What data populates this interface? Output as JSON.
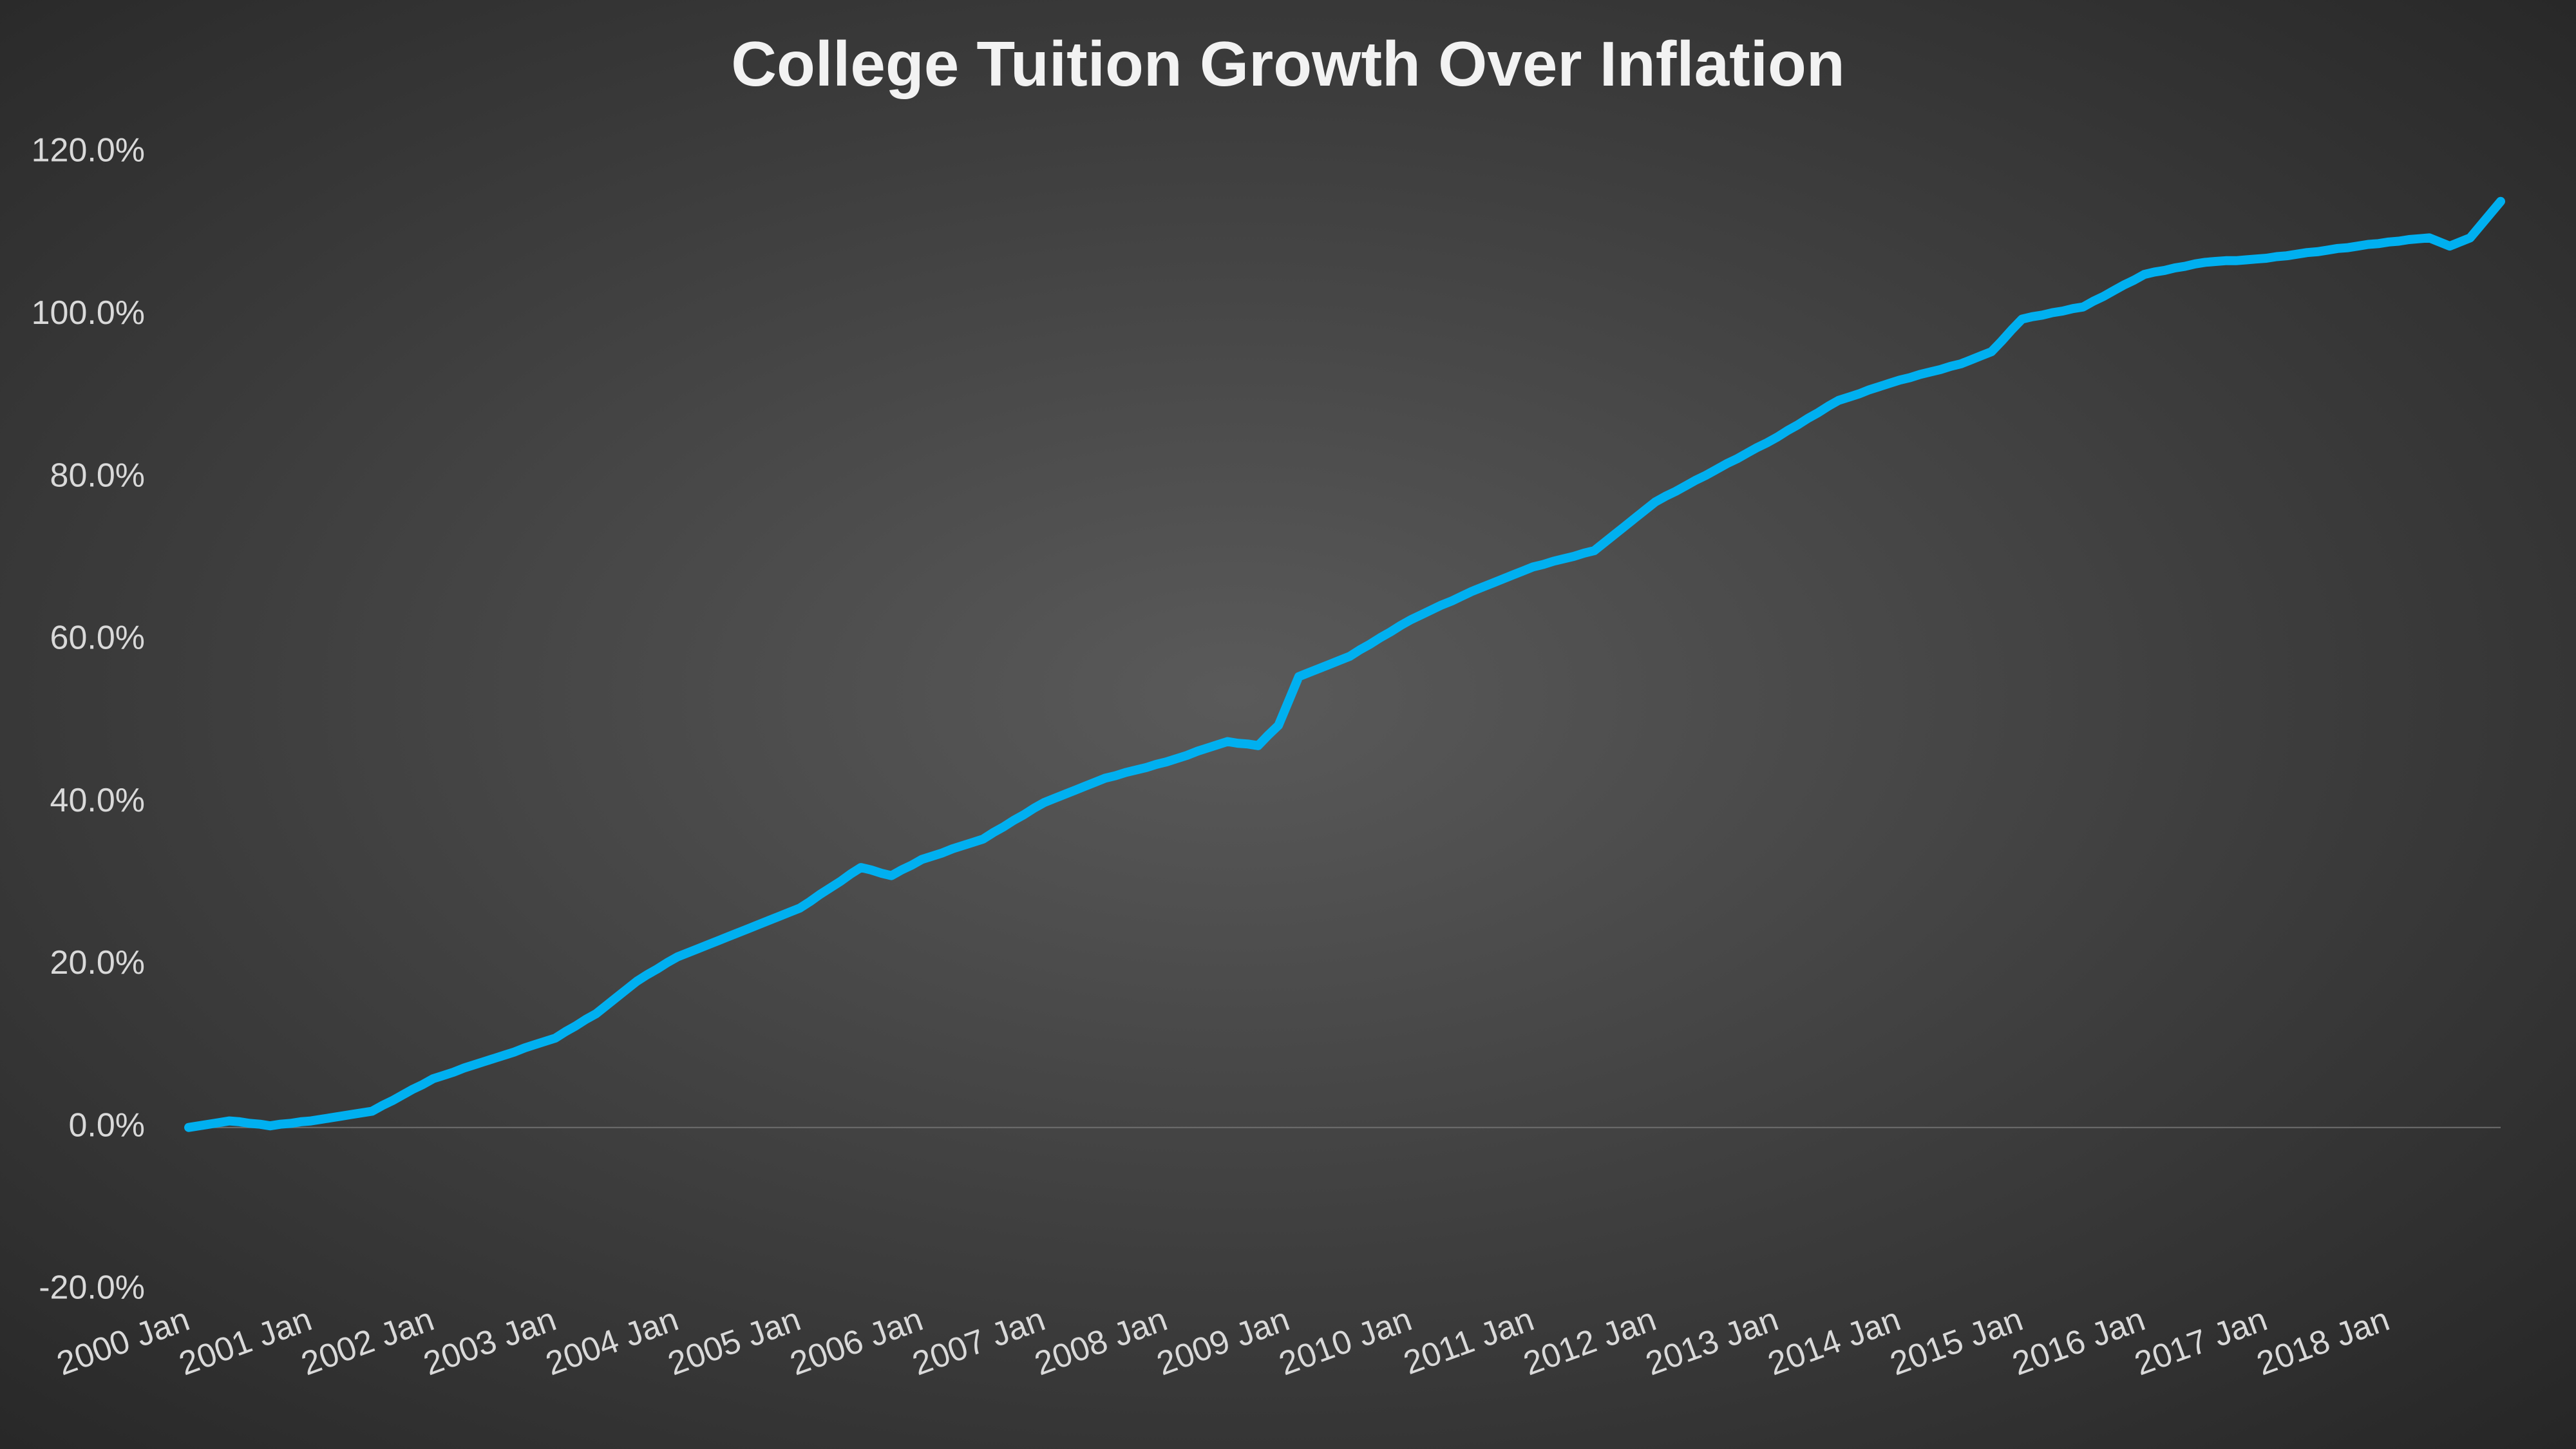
{
  "chart_data": {
    "type": "line",
    "title": "College Tuition Growth Over Inflation",
    "categories": [
      "2000 Jan",
      null,
      null,
      null,
      null,
      null,
      null,
      null,
      null,
      null,
      null,
      null,
      "2001 Jan",
      null,
      null,
      null,
      null,
      null,
      null,
      null,
      null,
      null,
      null,
      null,
      "2002 Jan",
      null,
      null,
      null,
      null,
      null,
      null,
      null,
      null,
      null,
      null,
      null,
      "2003 Jan",
      null,
      null,
      null,
      null,
      null,
      null,
      null,
      null,
      null,
      null,
      null,
      "2004 Jan",
      null,
      null,
      null,
      null,
      null,
      null,
      null,
      null,
      null,
      null,
      null,
      "2005 Jan",
      null,
      null,
      null,
      null,
      null,
      null,
      null,
      null,
      null,
      null,
      null,
      "2006 Jan",
      null,
      null,
      null,
      null,
      null,
      null,
      null,
      null,
      null,
      null,
      null,
      "2007 Jan",
      null,
      null,
      null,
      null,
      null,
      null,
      null,
      null,
      null,
      null,
      null,
      "2008 Jan",
      null,
      null,
      null,
      null,
      null,
      null,
      null,
      null,
      null,
      null,
      null,
      "2009 Jan",
      null,
      null,
      null,
      null,
      null,
      null,
      null,
      null,
      null,
      null,
      null,
      "2010 Jan",
      null,
      null,
      null,
      null,
      null,
      null,
      null,
      null,
      null,
      null,
      null,
      "2011 Jan",
      null,
      null,
      null,
      null,
      null,
      null,
      null,
      null,
      null,
      null,
      null,
      "2012 Jan",
      null,
      null,
      null,
      null,
      null,
      null,
      null,
      null,
      null,
      null,
      null,
      "2013 Jan",
      null,
      null,
      null,
      null,
      null,
      null,
      null,
      null,
      null,
      null,
      null,
      "2014 Jan",
      null,
      null,
      null,
      null,
      null,
      null,
      null,
      null,
      null,
      null,
      null,
      "2015 Jan",
      null,
      null,
      null,
      null,
      null,
      null,
      null,
      null,
      null,
      null,
      null,
      "2016 Jan",
      null,
      null,
      null,
      null,
      null,
      null,
      null,
      null,
      null,
      null,
      null,
      "2017 Jan",
      null,
      null,
      null,
      null,
      null,
      null,
      null,
      null,
      null,
      null,
      null,
      "2018 Jan",
      null,
      null,
      null,
      null,
      null,
      null,
      null,
      null,
      null,
      null,
      null
    ],
    "values": [
      0,
      0.2,
      0.4,
      0.6,
      0.8,
      0.7,
      0.5,
      0.4,
      0.2,
      0.4,
      0.5,
      0.7,
      0.8,
      1.0,
      1.2,
      1.4,
      1.6,
      1.8,
      2.0,
      2.7,
      3.3,
      4.0,
      4.7,
      5.3,
      6.0,
      6.4,
      6.8,
      7.3,
      7.7,
      8.1,
      8.5,
      8.9,
      9.3,
      9.8,
      10.2,
      10.6,
      11.0,
      11.8,
      12.5,
      13.3,
      14.0,
      15,
      16,
      17,
      18,
      18.8,
      19.5,
      20.3,
      21.0,
      21.5,
      22,
      22.5,
      23,
      23.5,
      24,
      24.5,
      25,
      25.5,
      26,
      26.5,
      27,
      27.8,
      28.7,
      29.5,
      30.3,
      31.2,
      32.0,
      31.7,
      31.3,
      31.0,
      31.7,
      32.3,
      33.0,
      33.4,
      33.8,
      34.3,
      34.7,
      35.1,
      35.5,
      36.3,
      37.0,
      37.8,
      38.5,
      39.3,
      40.0,
      40.5,
      41,
      41.5,
      42,
      42.5,
      43,
      43.3,
      43.7,
      44,
      44.3,
      44.7,
      45,
      45.4,
      45.8,
      46.3,
      46.7,
      47.1,
      47.5,
      47.3,
      47.2,
      47.0,
      48.3,
      49.5,
      52.5,
      55.5,
      56,
      56.5,
      57,
      57.5,
      58,
      58.8,
      59.5,
      60.3,
      61,
      61.8,
      62.5,
      63.1,
      63.7,
      64.3,
      64.8,
      65.4,
      66.0,
      66.5,
      67,
      67.5,
      68,
      68.5,
      69,
      69.3,
      69.7,
      70,
      70.3,
      70.7,
      71,
      72,
      73,
      74,
      75,
      76,
      77,
      77.7,
      78.3,
      79,
      79.7,
      80.3,
      81,
      81.7,
      82.3,
      83,
      83.7,
      84.3,
      85,
      85.8,
      86.5,
      87.3,
      88,
      88.8,
      89.5,
      89.9,
      90.3,
      90.8,
      91.2,
      91.6,
      92,
      92.3,
      92.7,
      93,
      93.3,
      93.7,
      94,
      94.5,
      95,
      95.5,
      96.8,
      98.2,
      99.5,
      99.8,
      100,
      100.3,
      100.5,
      100.8,
      101,
      101.7,
      102.3,
      103,
      103.7,
      104.3,
      105,
      105.3,
      105.5,
      105.8,
      106,
      106.3,
      106.5,
      106.6,
      106.7,
      106.7,
      106.8,
      106.9,
      107,
      107.2,
      107.3,
      107.5,
      107.7,
      107.8,
      108,
      108.2,
      108.3,
      108.5,
      108.7,
      108.8,
      109,
      109.1,
      109.3,
      109.4,
      109.5,
      109,
      108.5,
      109,
      109.5,
      111,
      112.5,
      114
    ],
    "color": "#00b0f0",
    "ylim": [
      -20,
      120
    ],
    "yticks": [
      {
        "value": -20,
        "label": "-20.0%"
      },
      {
        "value": 0,
        "label": "0.0%"
      },
      {
        "value": 20,
        "label": "20.0%"
      },
      {
        "value": 40,
        "label": "40.0%"
      },
      {
        "value": 60,
        "label": "60.0%"
      },
      {
        "value": 80,
        "label": "80.0%"
      },
      {
        "value": 100,
        "label": "100.0%"
      },
      {
        "value": 120,
        "label": "120.0%"
      }
    ],
    "grid": false
  }
}
